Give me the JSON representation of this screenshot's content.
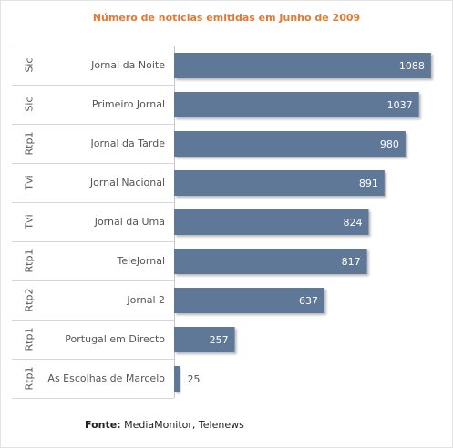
{
  "chart_data": {
    "type": "bar",
    "orientation": "horizontal",
    "title": "Número de notícias emitidas em Junho de 2009",
    "xlabel": "",
    "ylabel": "",
    "xlim": [
      0,
      1100
    ],
    "grid": false,
    "legend": "none",
    "bar_color": "#5e7898",
    "title_color": "#e8782c",
    "rows": [
      {
        "group": "Sic",
        "category": "Jornal da Noite",
        "value": 1088
      },
      {
        "group": "Sic",
        "category": "Primeiro Jornal",
        "value": 1037
      },
      {
        "group": "Rtp1",
        "category": "Jornal da Tarde",
        "value": 980
      },
      {
        "group": "Tvi",
        "category": "Jornal Nacional",
        "value": 891
      },
      {
        "group": "Tvi",
        "category": "Jornal da Uma",
        "value": 824
      },
      {
        "group": "Rtp1",
        "category": "TeleJornal",
        "value": 817
      },
      {
        "group": "Rtp2",
        "category": "Jornal 2",
        "value": 637
      },
      {
        "group": "Rtp1",
        "category": "Portugal em Directo",
        "value": 257
      },
      {
        "group": "Rtp1",
        "category": "As Escolhas de Marcelo",
        "value": 25
      }
    ]
  },
  "source": {
    "label": "Fonte:",
    "text": " MediaMonitor, Telenews"
  }
}
